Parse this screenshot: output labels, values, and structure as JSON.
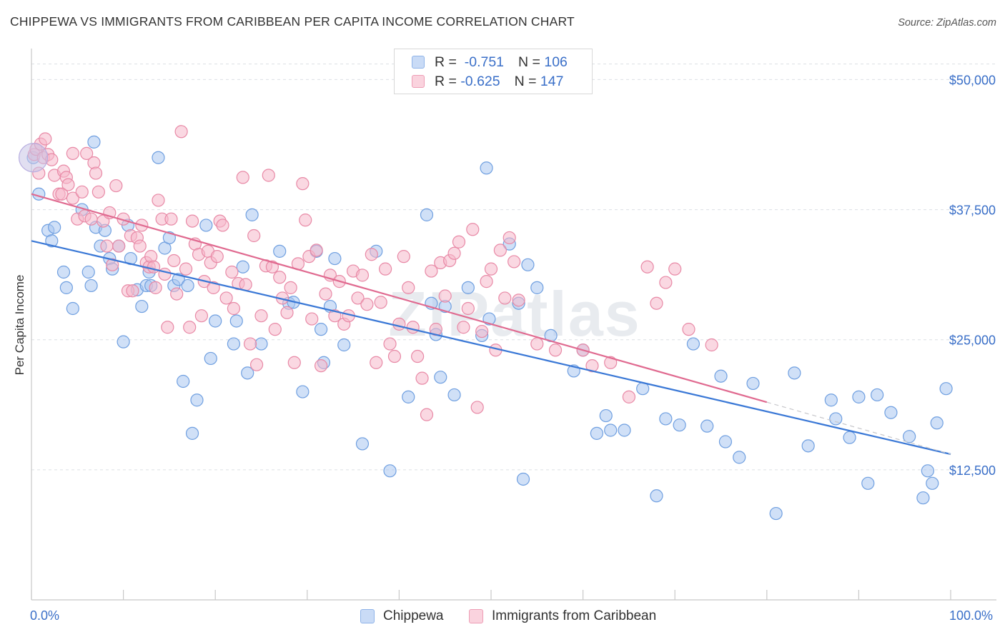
{
  "title": "CHIPPEWA VS IMMIGRANTS FROM CARIBBEAN PER CAPITA INCOME CORRELATION CHART",
  "source": "Source: ZipAtlas.com",
  "watermark": "ZIPatlas",
  "stats": [
    {
      "r_label": "R =",
      "r_value": "-0.751",
      "n_label": "N =",
      "n_value": "106",
      "color": "#a9c7f0"
    },
    {
      "r_label": "R =",
      "r_value": "-0.625",
      "n_label": "N =",
      "n_value": "147",
      "color": "#f5b8ca"
    }
  ],
  "legend": [
    {
      "label": "Chippewa",
      "color": "#a9c7f0"
    },
    {
      "label": "Immigrants from Caribbean",
      "color": "#f5b8ca"
    }
  ],
  "x_min_label": "0.0%",
  "x_max_label": "100.0%",
  "chart_data": {
    "type": "scatter",
    "title": "CHIPPEWA VS IMMIGRANTS FROM CARIBBEAN PER CAPITA INCOME CORRELATION CHART",
    "xlabel": "",
    "ylabel": "Per Capita Income",
    "xlim": [
      0,
      100
    ],
    "ylim": [
      0,
      52500
    ],
    "y_ticks": [
      12500,
      25000,
      37500,
      50000
    ],
    "y_tick_labels": [
      "$12,500",
      "$25,000",
      "$37,500",
      "$50,000"
    ],
    "grid": "horizontal dashed",
    "legend_position": "bottom-center",
    "series": [
      {
        "name": "Chippewa",
        "color": "#a9c7f0",
        "stroke": "#6f9fe0",
        "trend_color": "#3a78d6",
        "trend": {
          "x": [
            0,
            100
          ],
          "y": [
            34500,
            14000
          ]
        },
        "points": [
          [
            0.2,
            42500
          ],
          [
            0.8,
            39000
          ],
          [
            1.8,
            35500
          ],
          [
            2.2,
            34500
          ],
          [
            2.5,
            35800
          ],
          [
            3.5,
            31500
          ],
          [
            3.8,
            30000
          ],
          [
            4.5,
            28000
          ],
          [
            5.5,
            37500
          ],
          [
            6.2,
            31500
          ],
          [
            6.5,
            30200
          ],
          [
            6.8,
            44000
          ],
          [
            7.0,
            35800
          ],
          [
            7.5,
            34000
          ],
          [
            8.0,
            35500
          ],
          [
            8.5,
            32800
          ],
          [
            8.8,
            31800
          ],
          [
            9.5,
            34000
          ],
          [
            10.0,
            24800
          ],
          [
            10.5,
            36000
          ],
          [
            10.8,
            32800
          ],
          [
            11.5,
            29800
          ],
          [
            12.0,
            28200
          ],
          [
            12.5,
            30200
          ],
          [
            12.8,
            31500
          ],
          [
            13.0,
            30200
          ],
          [
            13.8,
            42500
          ],
          [
            14.5,
            33800
          ],
          [
            15.0,
            34800
          ],
          [
            15.5,
            30200
          ],
          [
            16.0,
            30800
          ],
          [
            16.5,
            21000
          ],
          [
            17.0,
            30200
          ],
          [
            17.5,
            16000
          ],
          [
            18.0,
            19200
          ],
          [
            19.0,
            36000
          ],
          [
            19.5,
            23200
          ],
          [
            20.0,
            26800
          ],
          [
            22.0,
            24600
          ],
          [
            22.3,
            26800
          ],
          [
            23.0,
            32000
          ],
          [
            23.5,
            21800
          ],
          [
            24.0,
            37000
          ],
          [
            25.0,
            24600
          ],
          [
            27.0,
            33500
          ],
          [
            28.0,
            28500
          ],
          [
            28.5,
            28600
          ],
          [
            29.5,
            20000
          ],
          [
            31.0,
            33500
          ],
          [
            31.5,
            26000
          ],
          [
            31.8,
            22800
          ],
          [
            32.5,
            28200
          ],
          [
            33.0,
            32800
          ],
          [
            34.0,
            24500
          ],
          [
            36.0,
            15000
          ],
          [
            37.5,
            33500
          ],
          [
            39.0,
            12400
          ],
          [
            41.0,
            19500
          ],
          [
            43.0,
            37000
          ],
          [
            43.5,
            28500
          ],
          [
            44.0,
            25500
          ],
          [
            44.5,
            21400
          ],
          [
            45.0,
            28200
          ],
          [
            46.0,
            19700
          ],
          [
            47.5,
            30000
          ],
          [
            49.0,
            25400
          ],
          [
            49.5,
            41500
          ],
          [
            49.8,
            27000
          ],
          [
            52.0,
            34200
          ],
          [
            53.0,
            28500
          ],
          [
            53.5,
            11600
          ],
          [
            54.0,
            32200
          ],
          [
            55.0,
            30000
          ],
          [
            56.5,
            25400
          ],
          [
            59.0,
            22000
          ],
          [
            60.0,
            24000
          ],
          [
            61.5,
            16000
          ],
          [
            62.5,
            17700
          ],
          [
            63.0,
            16300
          ],
          [
            64.5,
            16300
          ],
          [
            66.5,
            20300
          ],
          [
            68.0,
            10000
          ],
          [
            69.0,
            17400
          ],
          [
            70.5,
            16800
          ],
          [
            72.0,
            24600
          ],
          [
            73.5,
            16700
          ],
          [
            75.0,
            21500
          ],
          [
            75.5,
            15200
          ],
          [
            77.0,
            13700
          ],
          [
            78.5,
            20800
          ],
          [
            81.0,
            8300
          ],
          [
            83.0,
            21800
          ],
          [
            84.5,
            14800
          ],
          [
            87.0,
            19200
          ],
          [
            87.5,
            17400
          ],
          [
            89.0,
            15600
          ],
          [
            90.0,
            19500
          ],
          [
            91.0,
            11200
          ],
          [
            92.0,
            19700
          ],
          [
            93.5,
            18000
          ],
          [
            95.5,
            15700
          ],
          [
            97.0,
            9800
          ],
          [
            97.5,
            12400
          ],
          [
            98.0,
            11200
          ],
          [
            98.5,
            17000
          ],
          [
            99.5,
            20300
          ]
        ]
      },
      {
        "name": "Immigrants from Caribbean",
        "color": "#f5b8ca",
        "stroke": "#e889a6",
        "trend_color": "#e06a90",
        "trend": {
          "x": [
            0,
            80
          ],
          "y": [
            39000,
            19000
          ]
        },
        "trend_extension": {
          "x": [
            80,
            100
          ],
          "y": [
            19000,
            14000
          ]
        },
        "points": [
          [
            0.3,
            42800
          ],
          [
            0.5,
            43300
          ],
          [
            0.8,
            41000
          ],
          [
            1.0,
            43800
          ],
          [
            1.3,
            42500
          ],
          [
            1.5,
            44300
          ],
          [
            1.8,
            42800
          ],
          [
            2.2,
            42300
          ],
          [
            2.5,
            40800
          ],
          [
            3.0,
            39000
          ],
          [
            3.3,
            39000
          ],
          [
            3.5,
            41200
          ],
          [
            3.8,
            40600
          ],
          [
            4.0,
            39900
          ],
          [
            4.5,
            38600
          ],
          [
            4.5,
            42900
          ],
          [
            5.0,
            36600
          ],
          [
            5.5,
            39200
          ],
          [
            5.8,
            36900
          ],
          [
            6.0,
            42900
          ],
          [
            6.5,
            36600
          ],
          [
            6.8,
            42000
          ],
          [
            7.0,
            41000
          ],
          [
            7.3,
            39200
          ],
          [
            7.8,
            36400
          ],
          [
            8.2,
            34000
          ],
          [
            8.5,
            37200
          ],
          [
            8.8,
            32200
          ],
          [
            9.2,
            39800
          ],
          [
            9.5,
            34000
          ],
          [
            10.0,
            36600
          ],
          [
            10.5,
            29700
          ],
          [
            10.8,
            35000
          ],
          [
            11.0,
            29700
          ],
          [
            11.5,
            34800
          ],
          [
            11.8,
            34000
          ],
          [
            12.0,
            36000
          ],
          [
            12.5,
            32400
          ],
          [
            12.8,
            32000
          ],
          [
            13.0,
            33000
          ],
          [
            13.3,
            32000
          ],
          [
            13.5,
            30000
          ],
          [
            13.8,
            38400
          ],
          [
            14.2,
            36600
          ],
          [
            14.5,
            31300
          ],
          [
            14.8,
            26200
          ],
          [
            15.2,
            36600
          ],
          [
            15.5,
            32600
          ],
          [
            15.8,
            29400
          ],
          [
            16.3,
            45000
          ],
          [
            16.8,
            31800
          ],
          [
            17.2,
            26200
          ],
          [
            17.5,
            36400
          ],
          [
            17.8,
            34200
          ],
          [
            18.2,
            33200
          ],
          [
            18.5,
            27300
          ],
          [
            18.8,
            30600
          ],
          [
            19.2,
            33500
          ],
          [
            19.5,
            32400
          ],
          [
            19.8,
            30000
          ],
          [
            20.2,
            33000
          ],
          [
            20.5,
            36400
          ],
          [
            20.8,
            36000
          ],
          [
            21.2,
            29000
          ],
          [
            21.8,
            31500
          ],
          [
            22.0,
            28000
          ],
          [
            22.5,
            30400
          ],
          [
            23.0,
            40600
          ],
          [
            23.3,
            30300
          ],
          [
            23.8,
            24600
          ],
          [
            24.2,
            35000
          ],
          [
            24.5,
            22600
          ],
          [
            25.0,
            27300
          ],
          [
            25.5,
            32100
          ],
          [
            25.8,
            40800
          ],
          [
            26.2,
            32000
          ],
          [
            26.5,
            26000
          ],
          [
            27.0,
            31000
          ],
          [
            27.3,
            29000
          ],
          [
            27.8,
            27600
          ],
          [
            28.2,
            30000
          ],
          [
            28.6,
            22800
          ],
          [
            29.0,
            32300
          ],
          [
            29.5,
            40000
          ],
          [
            29.8,
            36500
          ],
          [
            30.2,
            33000
          ],
          [
            30.5,
            27000
          ],
          [
            31.0,
            33600
          ],
          [
            31.5,
            22500
          ],
          [
            32.0,
            29400
          ],
          [
            32.5,
            31200
          ],
          [
            33.0,
            27300
          ],
          [
            33.5,
            30600
          ],
          [
            34.0,
            26500
          ],
          [
            34.5,
            27300
          ],
          [
            35.0,
            31600
          ],
          [
            35.5,
            29000
          ],
          [
            36.0,
            31200
          ],
          [
            36.5,
            28400
          ],
          [
            37.0,
            33200
          ],
          [
            37.5,
            22800
          ],
          [
            38.0,
            28600
          ],
          [
            38.5,
            31800
          ],
          [
            39.0,
            24600
          ],
          [
            39.5,
            23400
          ],
          [
            40.0,
            26500
          ],
          [
            40.5,
            33000
          ],
          [
            41.0,
            30000
          ],
          [
            41.5,
            26200
          ],
          [
            42.0,
            23400
          ],
          [
            42.5,
            21300
          ],
          [
            43.0,
            17800
          ],
          [
            43.5,
            31600
          ],
          [
            44.0,
            26000
          ],
          [
            44.5,
            32400
          ],
          [
            45.0,
            29200
          ],
          [
            45.5,
            32600
          ],
          [
            46.0,
            33300
          ],
          [
            46.5,
            34400
          ],
          [
            47.0,
            26200
          ],
          [
            47.5,
            28000
          ],
          [
            48.0,
            35600
          ],
          [
            48.5,
            18500
          ],
          [
            49.0,
            25800
          ],
          [
            49.5,
            30600
          ],
          [
            50.0,
            31800
          ],
          [
            50.5,
            24000
          ],
          [
            51.0,
            33600
          ],
          [
            51.5,
            29000
          ],
          [
            52.0,
            34800
          ],
          [
            52.5,
            32500
          ],
          [
            53.0,
            28800
          ],
          [
            55.0,
            24600
          ],
          [
            57.0,
            24000
          ],
          [
            60.0,
            24000
          ],
          [
            61.0,
            22500
          ],
          [
            63.0,
            22800
          ],
          [
            65.0,
            19500
          ],
          [
            67.0,
            32000
          ],
          [
            68.0,
            28500
          ],
          [
            69.0,
            30500
          ],
          [
            70.0,
            31800
          ],
          [
            71.5,
            26000
          ],
          [
            74.0,
            24500
          ]
        ]
      }
    ]
  }
}
